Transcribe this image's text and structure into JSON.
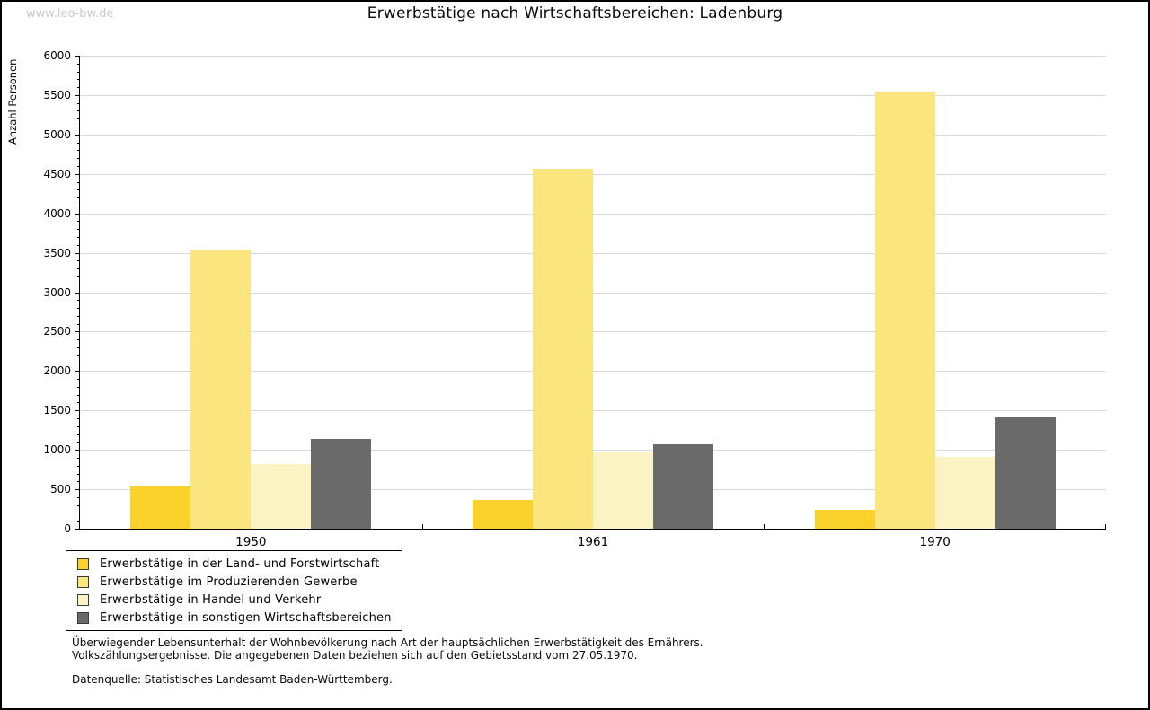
{
  "watermark": "www.leo-bw.de",
  "chart_data": {
    "type": "bar",
    "title": "Erwerbstätige nach Wirtschaftsbereichen: Ladenburg",
    "ylabel": "Anzahl Personen",
    "xlabel": "",
    "categories": [
      "1950",
      "1961",
      "1970"
    ],
    "series": [
      {
        "key": "land-forstwirtschaft",
        "name": "Erwerbstätige in der Land- und Forstwirtschaft",
        "color": "#FBD22B",
        "values": [
          540,
          360,
          240
        ]
      },
      {
        "key": "produzierendes-gewerbe",
        "name": "Erwerbstätige im Produzierenden Gewerbe",
        "color": "#FBE57E",
        "values": [
          3540,
          4570,
          5550
        ]
      },
      {
        "key": "handel-verkehr",
        "name": "Erwerbstätige in Handel und Verkehr",
        "color": "#FCF3C5",
        "values": [
          820,
          970,
          910
        ]
      },
      {
        "key": "sonstige-bereiche",
        "name": "Erwerbstätige in sonstigen Wirtschaftsbereichen",
        "color": "#6A6A6A",
        "values": [
          1140,
          1070,
          1410
        ]
      }
    ],
    "ylim": [
      0,
      6000
    ],
    "y_major_step": 500,
    "y_minor_step": 100,
    "grid": true,
    "legend_position": "bottom-left"
  },
  "footnotes": {
    "line1": "Überwiegender Lebensunterhalt der Wohnbevölkerung nach Art der hauptsächlichen Erwerbstätigkeit des Ernährers.",
    "line2": "Volkszählungsergebnisse. Die angegebenen Daten beziehen sich auf den Gebietsstand vom 27.05.1970.",
    "source": "Datenquelle: Statistisches Landesamt Baden-Württemberg."
  }
}
